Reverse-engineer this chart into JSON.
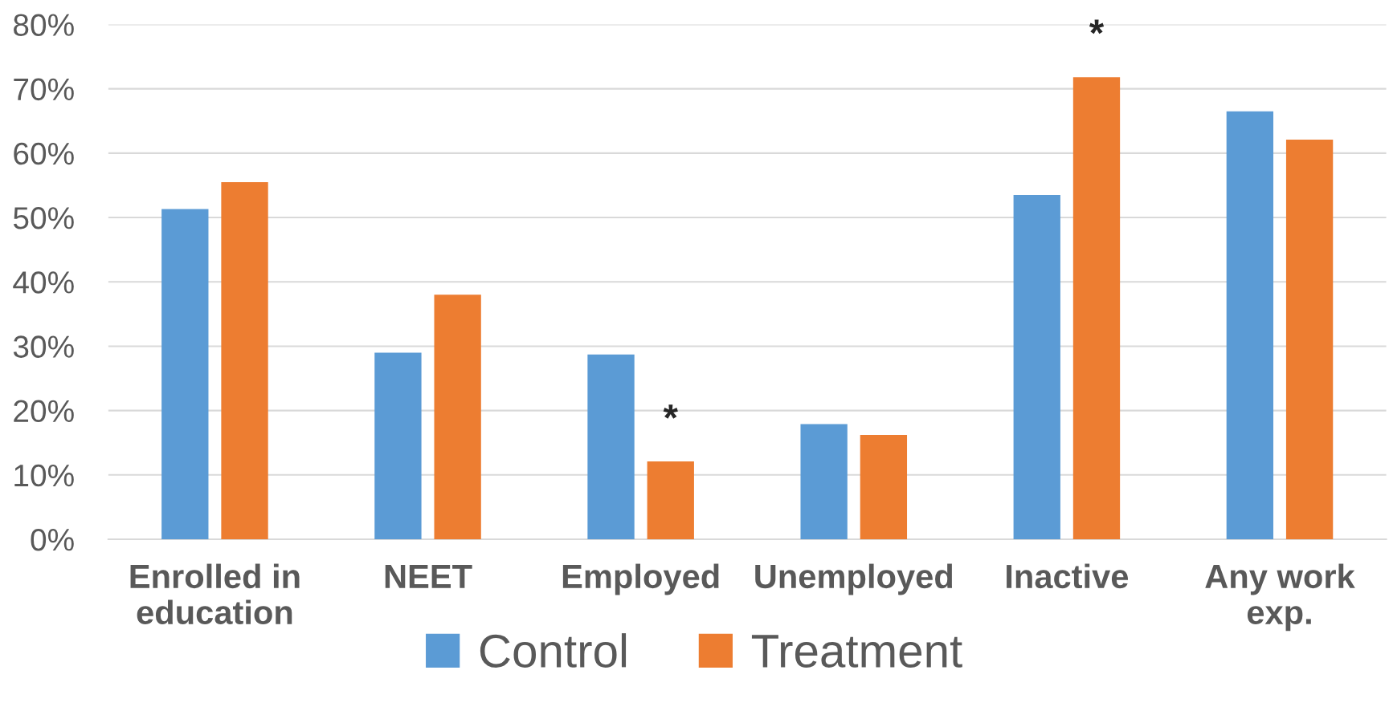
{
  "chart_data": {
    "type": "bar",
    "categories": [
      "Enrolled in education",
      "NEET",
      "Employed",
      "Unemployed",
      "Inactive",
      "Any work exp."
    ],
    "series": [
      {
        "name": "Control",
        "color": "#5b9bd5",
        "values": [
          51.3,
          29.0,
          28.7,
          17.9,
          53.5,
          66.5
        ]
      },
      {
        "name": "Treatment",
        "color": "#ed7d31",
        "values": [
          55.5,
          38.0,
          12.1,
          16.2,
          71.8,
          62.1
        ]
      }
    ],
    "ylim": [
      0,
      80
    ],
    "yticks": [
      {
        "value": 0,
        "label": "0%"
      },
      {
        "value": 10,
        "label": "10%"
      },
      {
        "value": 20,
        "label": "20%"
      },
      {
        "value": 30,
        "label": "30%"
      },
      {
        "value": 40,
        "label": "40%"
      },
      {
        "value": 50,
        "label": "50%"
      },
      {
        "value": 60,
        "label": "60%"
      },
      {
        "value": 70,
        "label": "70%"
      },
      {
        "value": 80,
        "label": "80%"
      }
    ],
    "annotations": [
      "*",
      "*"
    ],
    "grid": "y",
    "legend": "bottom"
  }
}
